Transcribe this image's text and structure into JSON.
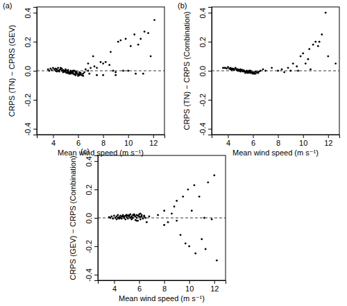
{
  "chart_data": [
    {
      "type": "scatter",
      "title": "(a)",
      "x_label": "Mean wind speed (m s⁻¹)",
      "y_label": "CRPS (TN) − CPRS (GEV)",
      "color": "#000000",
      "marker": "dot",
      "xlim": [
        2.7,
        12.9
      ],
      "ylim": [
        -0.44,
        0.44
      ],
      "xticks": [
        4,
        6,
        8,
        10,
        12
      ],
      "yticks": [
        -0.4,
        -0.2,
        {
          "value": 0,
          "label": "0.0"
        },
        0.2,
        0.4
      ],
      "hline": {
        "value": 0,
        "line_style": "dashed"
      },
      "x": [
        3.6,
        3.8,
        3.9,
        4.0,
        4.1,
        4.2,
        4.2,
        4.3,
        4.4,
        4.5,
        4.5,
        4.6,
        4.7,
        4.7,
        4.8,
        4.8,
        4.9,
        4.9,
        5.0,
        5.0,
        5.1,
        5.1,
        5.2,
        5.2,
        5.3,
        5.3,
        5.4,
        5.4,
        5.5,
        5.5,
        5.6,
        5.6,
        5.7,
        5.7,
        5.8,
        5.8,
        5.9,
        5.9,
        6.0,
        6.0,
        6.1,
        6.1,
        6.2,
        6.2,
        6.3,
        6.4,
        6.5,
        4.3,
        4.6,
        5.0,
        5.4,
        5.8,
        6.1,
        4.4,
        5.2,
        5.6,
        6.6,
        6.8,
        3.7,
        6.4,
        6.8,
        7.0,
        7.2,
        7.3,
        7.5,
        7.8,
        8.0,
        8.2,
        8.5,
        8.6,
        8.8,
        9.0,
        9.2,
        9.4,
        9.6,
        9.8,
        10.0,
        10.2,
        10.5,
        10.8,
        11.0,
        11.3,
        11.6,
        11.8,
        11.2,
        12.1,
        10.6,
        9.0,
        8.0,
        6.9,
        7.5
      ],
      "y": [
        0.01,
        0.015,
        0.005,
        0.02,
        0.01,
        0.0,
        0.015,
        0.01,
        0.02,
        0.005,
        -0.005,
        0.01,
        0.0,
        0.015,
        -0.01,
        0.005,
        0.0,
        -0.005,
        0.01,
        -0.01,
        0.0,
        -0.015,
        -0.005,
        0.005,
        -0.01,
        -0.02,
        0.0,
        -0.01,
        -0.015,
        -0.005,
        -0.02,
        -0.01,
        -0.025,
        0.0,
        -0.015,
        -0.03,
        -0.02,
        -0.01,
        -0.025,
        -0.035,
        -0.02,
        -0.03,
        -0.015,
        -0.025,
        -0.03,
        -0.02,
        -0.01,
        -0.005,
        0.02,
        0.0,
        -0.02,
        -0.005,
        -0.01,
        0.0,
        -0.015,
        0.0,
        0.01,
        0.0,
        0.0,
        -0.035,
        0.05,
        0.02,
        0.1,
        0.03,
        0.02,
        0.06,
        0.05,
        0.06,
        0.04,
        0.13,
        0.0,
        -0.01,
        0.2,
        0.21,
        0.0,
        0.22,
        0.0,
        0.17,
        0.25,
        0.18,
        0.22,
        0.27,
        0.26,
        0.1,
        -0.02,
        0.35,
        -0.02,
        -0.03,
        -0.03,
        -0.02,
        -0.03
      ]
    },
    {
      "type": "scatter",
      "title": "(b)",
      "x_label": "Mean wind speed (m s⁻¹)",
      "y_label": "CRPS (TN) − CRPS (Combination)",
      "color": "#000000",
      "marker": "dot",
      "xlim": [
        2.7,
        12.9
      ],
      "ylim": [
        -0.44,
        0.44
      ],
      "xticks": [
        4,
        6,
        8,
        10,
        12
      ],
      "yticks": [
        -0.4,
        -0.2,
        {
          "value": 0,
          "label": "0.0"
        },
        0.2,
        0.4
      ],
      "hline": {
        "value": 0,
        "line_style": "dashed"
      },
      "x": [
        3.6,
        3.8,
        3.9,
        4.0,
        4.1,
        4.2,
        4.2,
        4.3,
        4.4,
        4.5,
        4.5,
        4.6,
        4.7,
        4.7,
        4.8,
        4.8,
        4.9,
        4.9,
        5.0,
        5.0,
        5.1,
        5.1,
        5.2,
        5.2,
        5.3,
        5.3,
        5.4,
        5.4,
        5.5,
        5.5,
        5.6,
        5.6,
        5.7,
        5.7,
        5.8,
        5.8,
        5.9,
        5.9,
        6.0,
        6.0,
        6.1,
        6.1,
        6.2,
        6.2,
        6.3,
        6.4,
        6.5,
        4.3,
        4.6,
        5.0,
        5.4,
        5.8,
        6.1,
        4.4,
        5.2,
        5.6,
        6.6,
        6.8,
        3.7,
        6.4,
        7.0,
        7.5,
        8.0,
        8.3,
        8.5,
        8.8,
        9.0,
        9.2,
        9.5,
        9.6,
        9.8,
        10.0,
        10.2,
        10.4,
        10.5,
        10.6,
        10.8,
        11.0,
        11.2,
        11.3,
        11.5,
        11.8,
        12.0,
        12.6
      ],
      "y": [
        0.02,
        0.02,
        0.015,
        0.025,
        0.015,
        0.01,
        0.02,
        0.015,
        0.01,
        0.01,
        0.005,
        0.015,
        0.005,
        0.01,
        0.0,
        0.01,
        0.005,
        0.0,
        0.005,
        -0.005,
        0.0,
        0.005,
        -0.005,
        0.0,
        -0.005,
        0.0,
        -0.005,
        -0.01,
        0.0,
        -0.01,
        -0.005,
        -0.01,
        -0.01,
        0.0,
        -0.015,
        -0.005,
        -0.01,
        -0.015,
        -0.01,
        -0.02,
        -0.01,
        -0.015,
        -0.005,
        -0.02,
        -0.01,
        -0.015,
        -0.005,
        0.005,
        0.02,
        0.01,
        -0.015,
        0.0,
        -0.02,
        0.015,
        0.005,
        -0.015,
        0.0,
        0.01,
        0.02,
        -0.01,
        0.0,
        0.02,
        0.0,
        0.01,
        -0.01,
        0.02,
        0.0,
        0.05,
        0.03,
        0.0,
        0.1,
        0.12,
        0.05,
        0.08,
        0.15,
        0.01,
        0.18,
        0.2,
        0.17,
        0.2,
        0.25,
        0.4,
        0.1,
        0.05
      ]
    },
    {
      "type": "scatter",
      "title": "(c)",
      "x_label": "Mean wind speed (m s⁻¹)",
      "y_label": "CRPS (GEV) − CRPS (Combination)",
      "color": "#000000",
      "marker": "dot",
      "xlim": [
        2.7,
        12.9
      ],
      "ylim": [
        -0.44,
        0.44
      ],
      "xticks": [
        4,
        6,
        8,
        10,
        12
      ],
      "yticks": [
        -0.4,
        -0.2,
        {
          "value": 0,
          "label": "0.0"
        },
        0.2,
        0.4
      ],
      "hline": {
        "value": 0,
        "line_style": "dashed"
      },
      "x": [
        3.6,
        3.8,
        3.9,
        4.0,
        4.1,
        4.2,
        4.2,
        4.3,
        4.4,
        4.5,
        4.5,
        4.6,
        4.7,
        4.7,
        4.8,
        4.8,
        4.9,
        4.9,
        5.0,
        5.0,
        5.1,
        5.1,
        5.2,
        5.2,
        5.3,
        5.3,
        5.4,
        5.4,
        5.5,
        5.5,
        5.6,
        5.6,
        5.7,
        5.7,
        5.8,
        5.8,
        5.9,
        5.9,
        6.0,
        6.0,
        6.1,
        6.1,
        6.2,
        6.2,
        6.3,
        6.4,
        6.5,
        4.3,
        4.6,
        5.0,
        5.4,
        5.8,
        6.1,
        4.4,
        5.2,
        5.6,
        6.6,
        6.8,
        3.7,
        6.4,
        7.5,
        8.0,
        8.0,
        8.3,
        8.6,
        8.8,
        9.0,
        9.0,
        9.3,
        9.5,
        9.7,
        9.9,
        10.0,
        10.2,
        10.4,
        10.5,
        10.8,
        11.0,
        11.2,
        11.3,
        11.5,
        11.8,
        12.0,
        12.2
      ],
      "y": [
        0.005,
        0.01,
        -0.005,
        0.015,
        0.0,
        0.01,
        -0.01,
        0.02,
        0.005,
        0.0,
        0.015,
        -0.005,
        0.01,
        0.02,
        0.0,
        0.01,
        0.015,
        -0.01,
        0.02,
        0.005,
        0.015,
        -0.005,
        0.02,
        0.01,
        0.0,
        0.025,
        0.01,
        -0.01,
        0.02,
        0.0,
        0.015,
        0.025,
        -0.015,
        0.01,
        0.02,
        0.0,
        0.015,
        -0.02,
        0.01,
        0.025,
        0.005,
        -0.01,
        0.02,
        0.01,
        -0.005,
        0.015,
        0.0,
        0.0,
        0.01,
        0.02,
        0.005,
        -0.02,
        0.03,
        -0.005,
        0.015,
        0.02,
        -0.03,
        0.01,
        0.0,
        0.01,
        0.02,
        -0.05,
        0.05,
        -0.03,
        0.03,
        0.08,
        0.12,
        -0.02,
        -0.12,
        0.15,
        -0.18,
        0.2,
        -0.2,
        0.05,
        0.23,
        -0.25,
        0.15,
        -0.15,
        0.0,
        -0.22,
        0.25,
        -0.01,
        0.3,
        -0.3
      ]
    }
  ]
}
